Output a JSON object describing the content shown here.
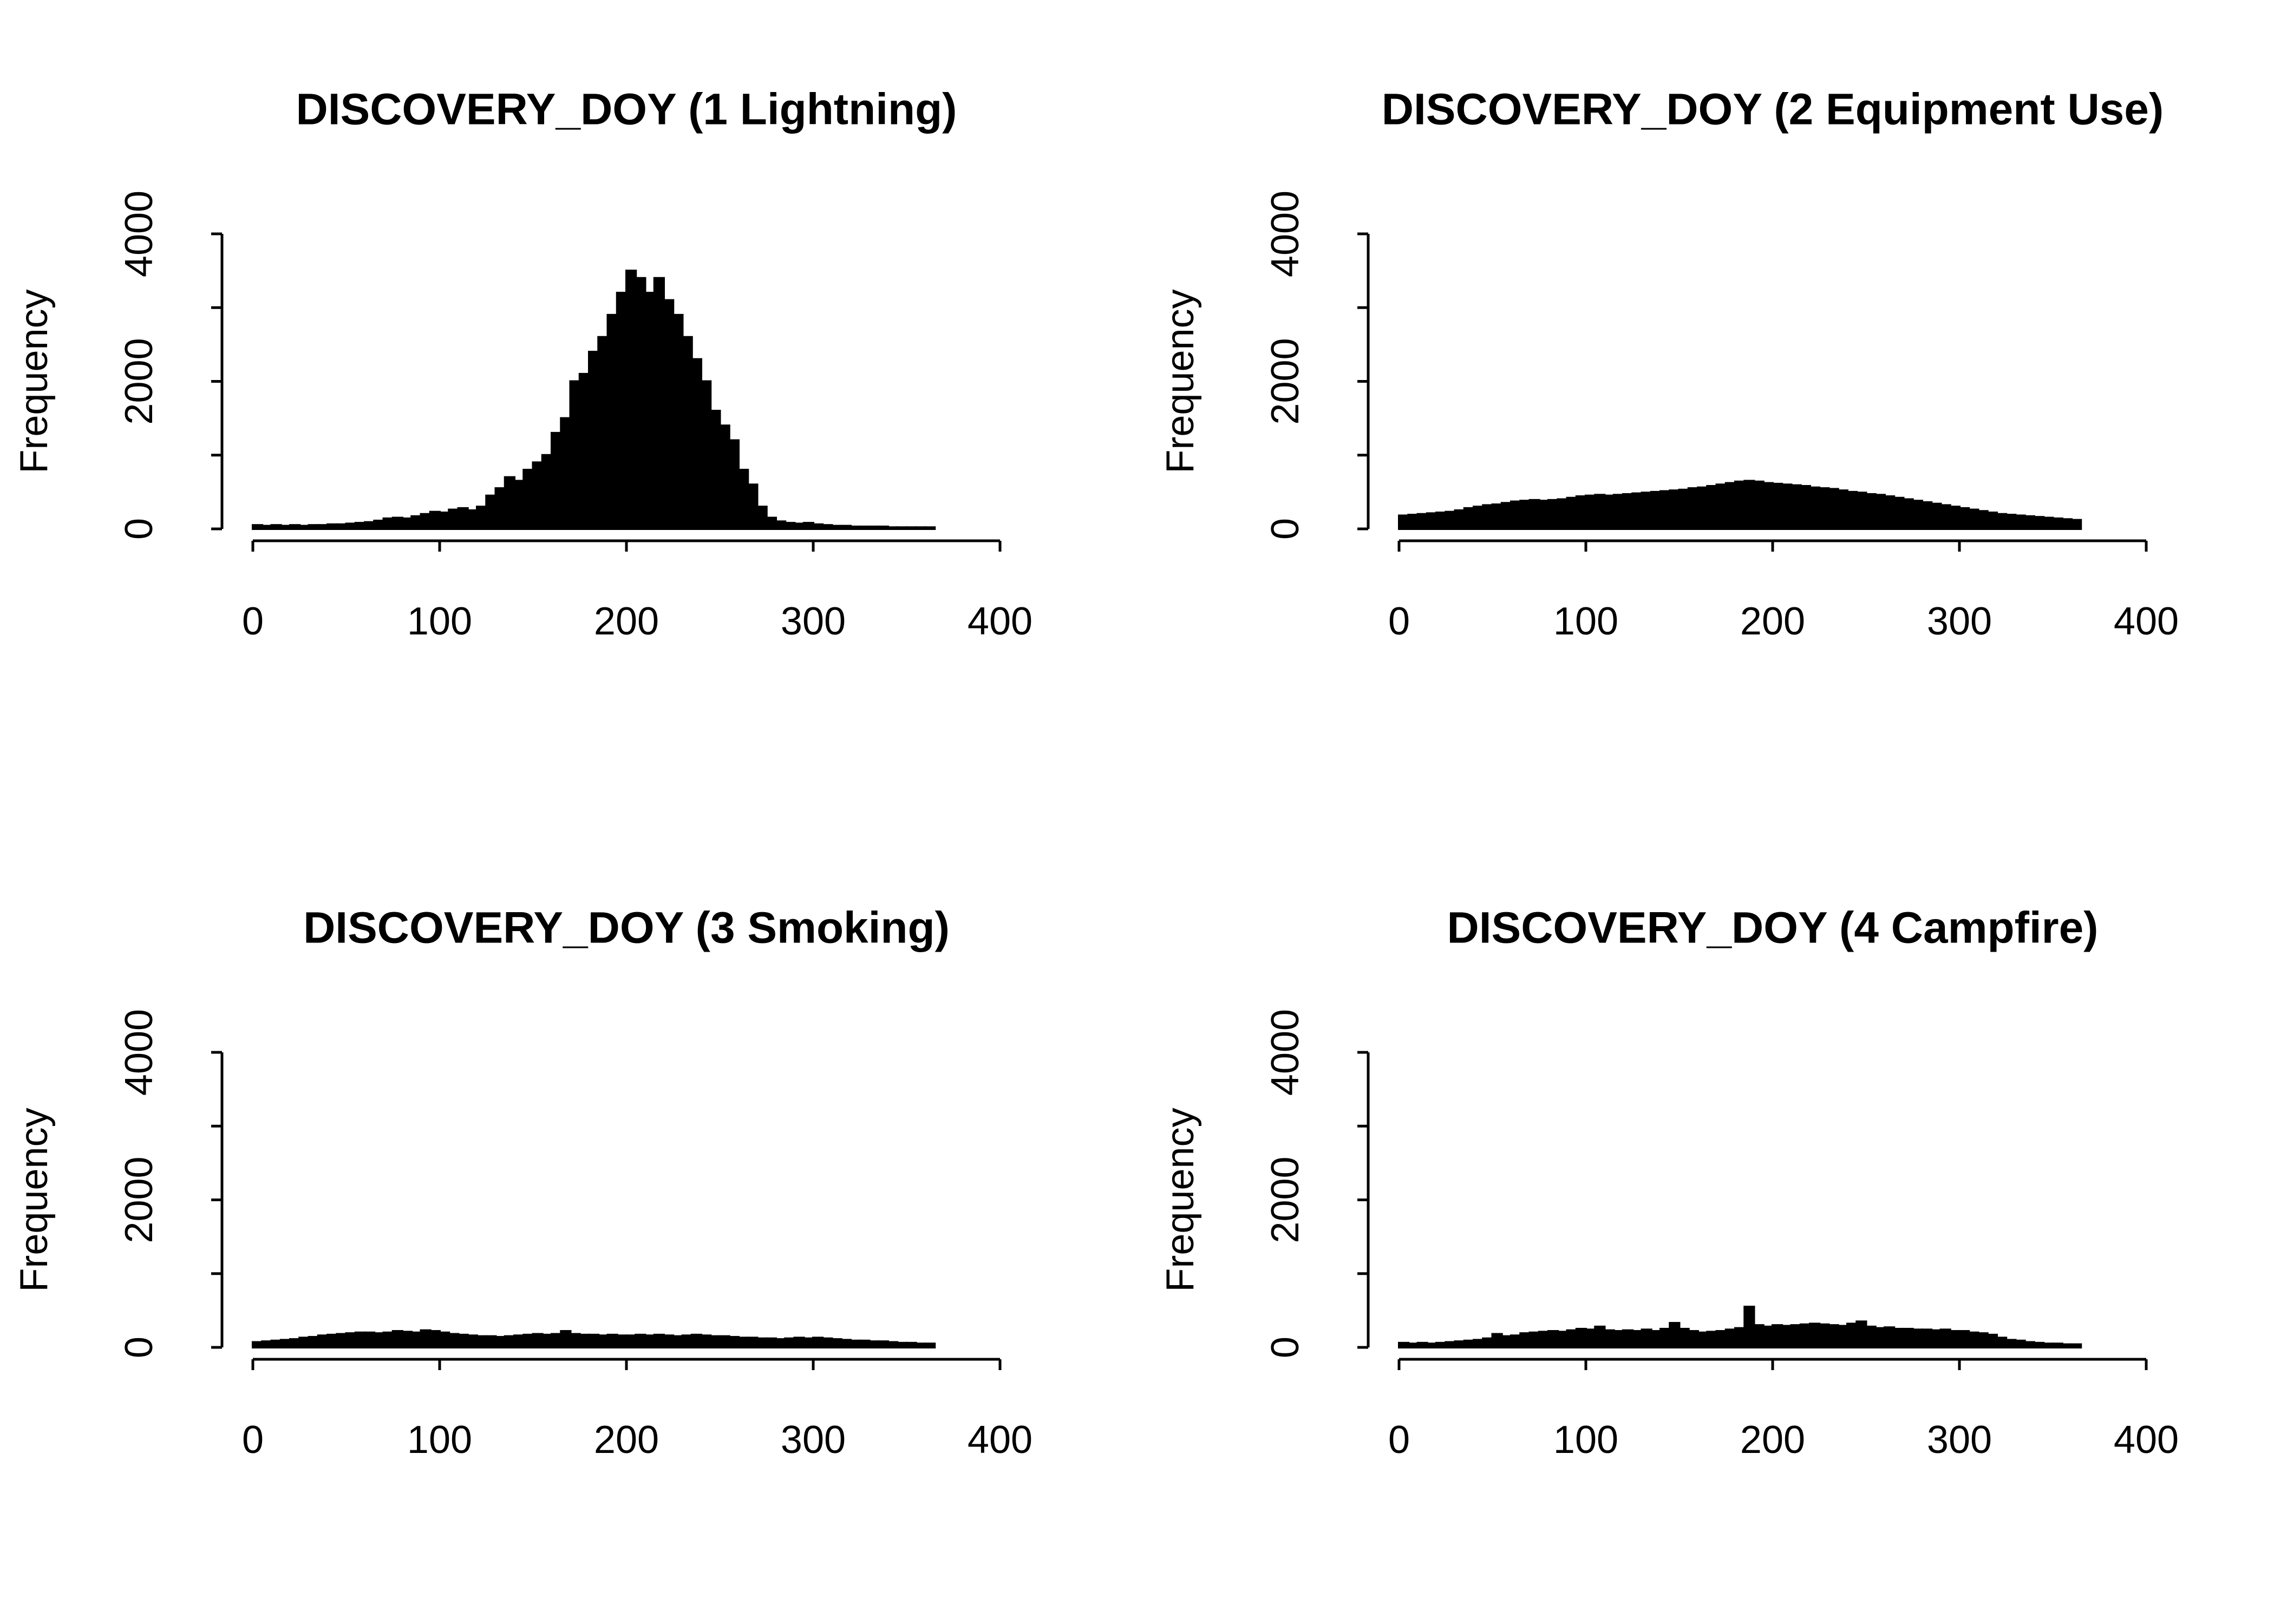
{
  "chart_data": [
    {
      "type": "histogram",
      "title": "DISCOVERY_DOY (1 Lightning)",
      "ylabel": "Frequency",
      "color": "#000000",
      "bins": [
        0,
        5,
        10,
        15,
        20,
        25,
        30,
        35,
        40,
        45,
        50,
        55,
        60,
        65,
        70,
        75,
        80,
        85,
        90,
        95,
        100,
        105,
        110,
        115,
        120,
        125,
        130,
        135,
        140,
        145,
        150,
        155,
        160,
        165,
        170,
        175,
        180,
        185,
        190,
        195,
        200,
        205,
        210,
        215,
        220,
        225,
        230,
        235,
        240,
        245,
        250,
        255,
        260,
        265,
        270,
        275,
        280,
        285,
        290,
        295,
        300,
        305,
        310,
        315,
        320,
        325,
        330,
        335,
        340,
        345,
        350,
        355,
        360,
        365
      ],
      "values": [
        50,
        40,
        50,
        40,
        50,
        40,
        50,
        50,
        60,
        60,
        70,
        80,
        90,
        110,
        140,
        150,
        140,
        170,
        200,
        230,
        220,
        260,
        280,
        250,
        300,
        450,
        550,
        700,
        650,
        800,
        900,
        1000,
        1300,
        1500,
        2000,
        2100,
        2400,
        2600,
        2900,
        3200,
        3500,
        3400,
        3200,
        3400,
        3100,
        2900,
        2600,
        2300,
        2000,
        1600,
        1400,
        1200,
        800,
        600,
        300,
        150,
        100,
        80,
        70,
        80,
        60,
        50,
        40,
        40,
        30,
        30,
        30,
        30,
        20,
        20,
        20,
        20,
        20
      ],
      "xlim": [
        0,
        400
      ],
      "xticks": [
        0,
        100,
        200,
        300,
        400
      ],
      "ylim": [
        0,
        4000
      ],
      "yticks": [
        0,
        {
          "value": 1000,
          "label": null
        },
        2000,
        {
          "value": 3000,
          "label": null
        },
        4000
      ]
    },
    {
      "type": "histogram",
      "title": "DISCOVERY_DOY (2 Equipment Use)",
      "ylabel": "Frequency",
      "color": "#000000",
      "bins": [
        0,
        5,
        10,
        15,
        20,
        25,
        30,
        35,
        40,
        45,
        50,
        55,
        60,
        65,
        70,
        75,
        80,
        85,
        90,
        95,
        100,
        105,
        110,
        115,
        120,
        125,
        130,
        135,
        140,
        145,
        150,
        155,
        160,
        165,
        170,
        175,
        180,
        185,
        190,
        195,
        200,
        205,
        210,
        215,
        220,
        225,
        230,
        235,
        240,
        245,
        250,
        255,
        260,
        265,
        270,
        275,
        280,
        285,
        290,
        295,
        300,
        305,
        310,
        315,
        320,
        325,
        330,
        335,
        340,
        345,
        350,
        355,
        360,
        365
      ],
      "values": [
        180,
        190,
        200,
        210,
        220,
        230,
        250,
        280,
        300,
        320,
        330,
        350,
        370,
        380,
        390,
        380,
        390,
        400,
        420,
        440,
        450,
        460,
        450,
        460,
        470,
        480,
        490,
        500,
        510,
        520,
        530,
        550,
        560,
        580,
        600,
        620,
        640,
        650,
        640,
        620,
        610,
        600,
        590,
        580,
        560,
        550,
        540,
        520,
        500,
        490,
        470,
        460,
        440,
        420,
        400,
        380,
        360,
        340,
        320,
        300,
        280,
        260,
        240,
        220,
        200,
        190,
        180,
        170,
        160,
        150,
        140,
        130,
        120
      ],
      "xlim": [
        0,
        400
      ],
      "xticks": [
        0,
        100,
        200,
        300,
        400
      ],
      "ylim": [
        0,
        4000
      ],
      "yticks": [
        0,
        {
          "value": 1000,
          "label": null
        },
        2000,
        {
          "value": 3000,
          "label": null
        },
        4000
      ]
    },
    {
      "type": "histogram",
      "title": "DISCOVERY_DOY (3 Smoking)",
      "ylabel": "Frequency",
      "color": "#000000",
      "bins": [
        0,
        5,
        10,
        15,
        20,
        25,
        30,
        35,
        40,
        45,
        50,
        55,
        60,
        65,
        70,
        75,
        80,
        85,
        90,
        95,
        100,
        105,
        110,
        115,
        120,
        125,
        130,
        135,
        140,
        145,
        150,
        155,
        160,
        165,
        170,
        175,
        180,
        185,
        190,
        195,
        200,
        205,
        210,
        215,
        220,
        225,
        230,
        235,
        240,
        245,
        250,
        255,
        260,
        265,
        270,
        275,
        280,
        285,
        290,
        295,
        300,
        305,
        310,
        315,
        320,
        325,
        330,
        335,
        340,
        345,
        350,
        355,
        360,
        365
      ],
      "values": [
        70,
        80,
        90,
        100,
        110,
        130,
        140,
        160,
        170,
        180,
        190,
        200,
        200,
        190,
        200,
        220,
        210,
        200,
        230,
        220,
        200,
        180,
        170,
        160,
        150,
        150,
        140,
        150,
        160,
        170,
        180,
        170,
        180,
        220,
        180,
        170,
        170,
        160,
        170,
        160,
        160,
        170,
        160,
        170,
        160,
        150,
        160,
        170,
        160,
        150,
        150,
        140,
        130,
        130,
        120,
        120,
        110,
        120,
        130,
        120,
        130,
        120,
        110,
        100,
        90,
        90,
        80,
        80,
        70,
        60,
        60,
        50,
        50
      ],
      "xlim": [
        0,
        400
      ],
      "xticks": [
        0,
        100,
        200,
        300,
        400
      ],
      "ylim": [
        0,
        4000
      ],
      "yticks": [
        0,
        {
          "value": 1000,
          "label": null
        },
        2000,
        {
          "value": 3000,
          "label": null
        },
        4000
      ]
    },
    {
      "type": "histogram",
      "title": "DISCOVERY_DOY (4 Campfire)",
      "ylabel": "Frequency",
      "color": "#000000",
      "bins": [
        0,
        5,
        10,
        15,
        20,
        25,
        30,
        35,
        40,
        45,
        50,
        55,
        60,
        65,
        70,
        75,
        80,
        85,
        90,
        95,
        100,
        105,
        110,
        115,
        120,
        125,
        130,
        135,
        140,
        145,
        150,
        155,
        160,
        165,
        170,
        175,
        180,
        185,
        190,
        195,
        200,
        205,
        210,
        215,
        220,
        225,
        230,
        235,
        240,
        245,
        250,
        255,
        260,
        265,
        270,
        275,
        280,
        285,
        290,
        295,
        300,
        305,
        310,
        315,
        320,
        325,
        330,
        335,
        340,
        345,
        350,
        355,
        360,
        365
      ],
      "values": [
        60,
        50,
        60,
        50,
        60,
        70,
        80,
        90,
        100,
        120,
        180,
        150,
        160,
        190,
        200,
        210,
        220,
        210,
        230,
        250,
        240,
        280,
        230,
        220,
        230,
        220,
        240,
        220,
        250,
        330,
        250,
        220,
        200,
        210,
        220,
        240,
        260,
        550,
        300,
        280,
        300,
        290,
        300,
        310,
        320,
        310,
        300,
        290,
        320,
        350,
        280,
        260,
        270,
        250,
        250,
        240,
        240,
        230,
        240,
        220,
        220,
        200,
        190,
        170,
        130,
        100,
        90,
        70,
        60,
        50,
        50,
        40,
        40
      ],
      "xlim": [
        0,
        400
      ],
      "xticks": [
        0,
        100,
        200,
        300,
        400
      ],
      "ylim": [
        0,
        4000
      ],
      "yticks": [
        0,
        {
          "value": 1000,
          "label": null
        },
        2000,
        {
          "value": 3000,
          "label": null
        },
        4000
      ]
    }
  ]
}
